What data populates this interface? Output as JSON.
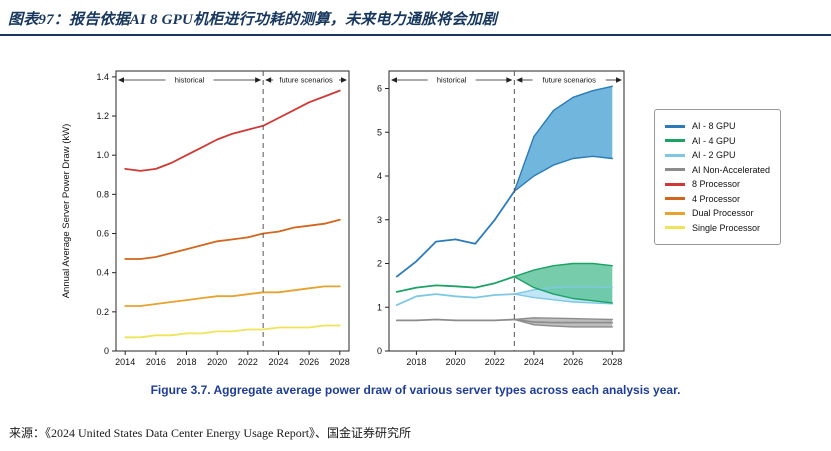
{
  "page": {
    "title": "图表97：报告依据AI 8 GPU机柜进行功耗的测算，未来电力通胀将会加剧",
    "caption": "Figure 3.7.  Aggregate average power draw of various server types across each analysis year.",
    "source": "来源：《2024 United States Data Center Energy Usage Report》、国金证券研究所",
    "accent_color": "#17375e",
    "caption_color": "#1e3d96"
  },
  "legend": {
    "items": [
      {
        "label": "AI - 8 GPU",
        "color": "#2b7bba"
      },
      {
        "label": "AI - 4 GPU",
        "color": "#1ba264"
      },
      {
        "label": "AI - 2 GPU",
        "color": "#7ec8e3"
      },
      {
        "label": "AI Non-Accelerated",
        "color": "#8c8c8c"
      },
      {
        "label": "8 Processor",
        "color": "#cf3834"
      },
      {
        "label": "4 Processor",
        "color": "#d2661c"
      },
      {
        "label": "Dual Processor",
        "color": "#e6a32e"
      },
      {
        "label": "Single Processor",
        "color": "#efe35a"
      }
    ],
    "position": "right"
  },
  "chart_data": [
    {
      "type": "line",
      "title": "",
      "xlabel": "",
      "ylabel": "Annual Average Server Power Draw (kW)",
      "xlim": [
        2013.4,
        2028.6
      ],
      "ylim": [
        0,
        1.43
      ],
      "xticks": [
        2014,
        2016,
        2018,
        2020,
        2022,
        2024,
        2026,
        2028
      ],
      "yticks": [
        0,
        0.2,
        0.4,
        0.6,
        0.8,
        1.0,
        1.2,
        1.4
      ],
      "ytick_labels": [
        "0",
        "0.2",
        "0.4",
        "0.6",
        "0.8",
        "1.0",
        "1.2",
        "1.4"
      ],
      "grid": false,
      "divider_x": 2023,
      "annotation_left": "historical",
      "annotation_right": "future scenarios",
      "x": [
        2014,
        2015,
        2016,
        2017,
        2018,
        2019,
        2020,
        2021,
        2022,
        2023,
        2024,
        2025,
        2026,
        2027,
        2028
      ],
      "series": [
        {
          "name": "8 Processor",
          "color": "#cf3834",
          "values": [
            0.93,
            0.92,
            0.93,
            0.96,
            1.0,
            1.04,
            1.08,
            1.11,
            1.13,
            1.15,
            1.19,
            1.23,
            1.27,
            1.3,
            1.33
          ]
        },
        {
          "name": "4 Processor",
          "color": "#d2661c",
          "values": [
            0.47,
            0.47,
            0.48,
            0.5,
            0.52,
            0.54,
            0.56,
            0.57,
            0.58,
            0.6,
            0.61,
            0.63,
            0.64,
            0.65,
            0.67
          ]
        },
        {
          "name": "Dual Processor",
          "color": "#e6a32e",
          "values": [
            0.23,
            0.23,
            0.24,
            0.25,
            0.26,
            0.27,
            0.28,
            0.28,
            0.29,
            0.3,
            0.3,
            0.31,
            0.32,
            0.33,
            0.33
          ]
        },
        {
          "name": "Single Processor",
          "color": "#efe35a",
          "values": [
            0.07,
            0.07,
            0.08,
            0.08,
            0.09,
            0.09,
            0.1,
            0.1,
            0.11,
            0.11,
            0.12,
            0.12,
            0.12,
            0.13,
            0.13
          ]
        }
      ]
    },
    {
      "type": "line-band",
      "title": "",
      "xlabel": "",
      "ylabel": "",
      "xlim": [
        2016.6,
        2028.6
      ],
      "ylim": [
        0,
        6.4
      ],
      "xticks": [
        2018,
        2020,
        2022,
        2024,
        2026,
        2028
      ],
      "yticks": [
        0,
        1,
        2,
        3,
        4,
        5,
        6
      ],
      "ytick_labels": [
        "0",
        "1",
        "2",
        "3",
        "4",
        "5",
        "6"
      ],
      "grid": false,
      "divider_x": 2023,
      "annotation_left": "historical",
      "annotation_right": "future scenarios",
      "x_hist": [
        2017,
        2018,
        2019,
        2020,
        2021,
        2022,
        2023
      ],
      "x_future": [
        2023,
        2024,
        2025,
        2026,
        2027,
        2028
      ],
      "series": [
        {
          "name": "AI Non-Accelerated",
          "color": "#8c8c8c",
          "fill": "#b3b3b3",
          "hist": [
            0.7,
            0.7,
            0.72,
            0.7,
            0.7,
            0.7,
            0.72
          ],
          "low": [
            0.72,
            0.6,
            0.57,
            0.55,
            0.55,
            0.55
          ],
          "high": [
            0.72,
            0.76,
            0.75,
            0.74,
            0.73,
            0.72
          ],
          "mid": [
            0.72,
            0.66,
            0.65,
            0.65,
            0.65,
            0.65
          ]
        },
        {
          "name": "AI - 2 GPU",
          "color": "#7ec8e3",
          "fill": "#b9e2f4",
          "hist": [
            1.05,
            1.25,
            1.3,
            1.25,
            1.22,
            1.28,
            1.3
          ],
          "low": [
            1.3,
            1.22,
            1.17,
            1.12,
            1.1,
            1.08
          ],
          "high": [
            1.3,
            1.4,
            1.45,
            1.46,
            1.46,
            1.45
          ]
        },
        {
          "name": "AI - 4 GPU",
          "color": "#1ba264",
          "fill": "#5fc49c",
          "hist": [
            1.35,
            1.45,
            1.5,
            1.48,
            1.45,
            1.55,
            1.7
          ],
          "low": [
            1.7,
            1.45,
            1.3,
            1.2,
            1.15,
            1.1
          ],
          "high": [
            1.7,
            1.85,
            1.95,
            2.0,
            2.0,
            1.95
          ]
        },
        {
          "name": "AI - 8 GPU",
          "color": "#2b7bba",
          "fill": "#58a9d6",
          "hist": [
            1.7,
            2.05,
            2.5,
            2.55,
            2.45,
            3.0,
            3.65
          ],
          "low": [
            3.65,
            4.0,
            4.25,
            4.4,
            4.45,
            4.4
          ],
          "high": [
            3.65,
            4.9,
            5.5,
            5.8,
            5.95,
            6.05
          ]
        }
      ]
    }
  ]
}
